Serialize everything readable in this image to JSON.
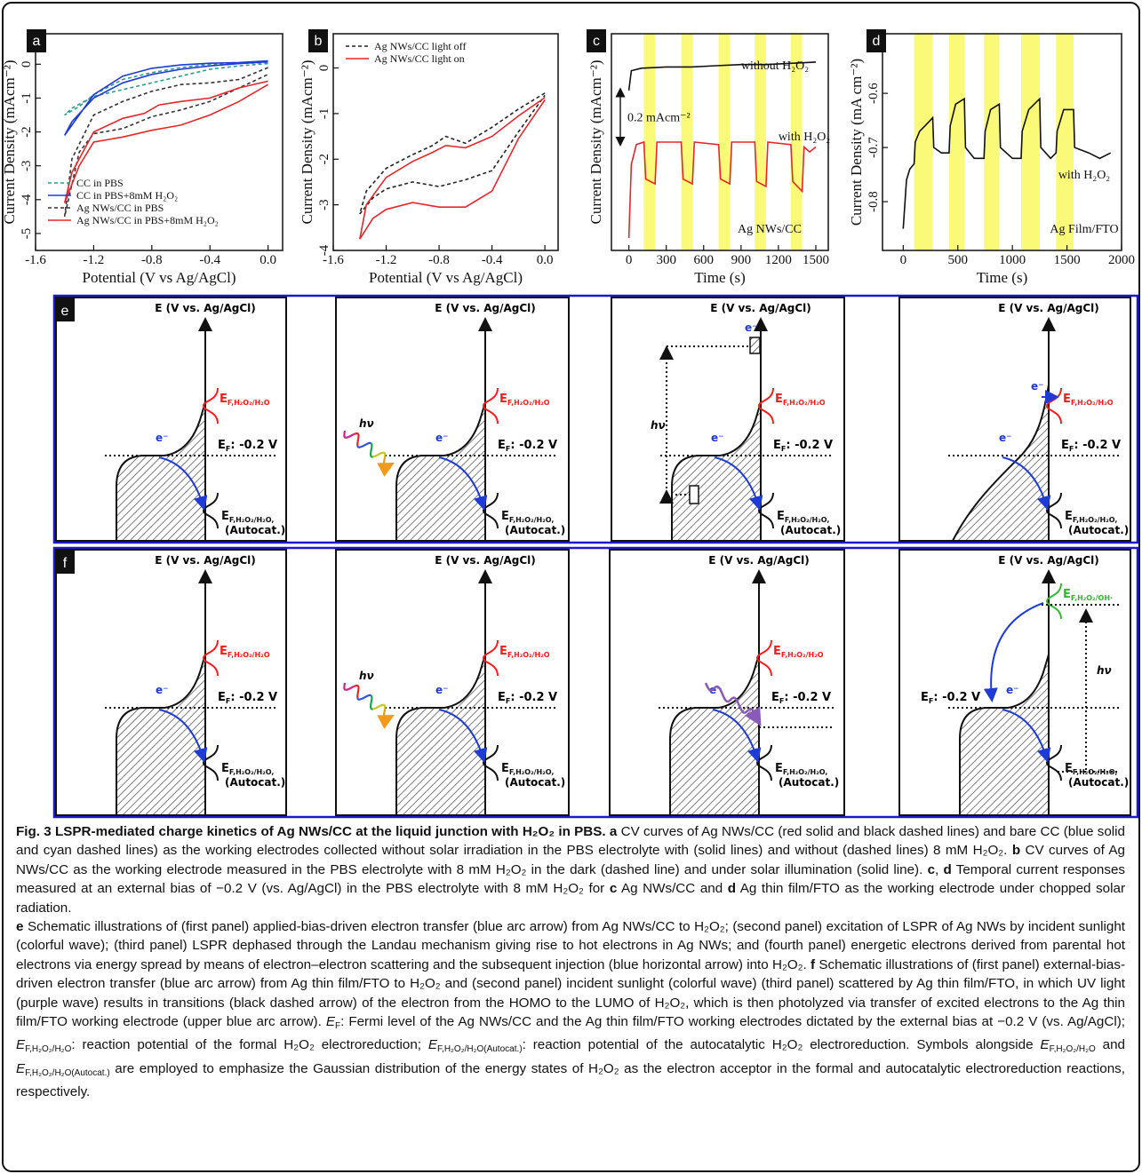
{
  "chart_data": [
    {
      "type": "line",
      "label": "a",
      "xlabel": "Potential (V vs Ag/AgCl)",
      "ylabel": "Current Density (mAcm⁻²)",
      "xlim": [
        -1.6,
        0.1
      ],
      "ylim": [
        -5.5,
        0.9
      ],
      "xticks": [
        -1.6,
        -1.2,
        -0.8,
        -0.4,
        {
          "value": 0,
          "label": "0.0"
        }
      ],
      "yticks": [
        -5,
        -4,
        -3,
        -2,
        -1,
        0
      ],
      "legend": "lower left",
      "series": [
        {
          "name": "CC in PBS",
          "color": "#2e9a8e",
          "dash": true,
          "x": [
            0,
            -0.2,
            -0.4,
            -0.6,
            -0.8,
            -1.0,
            -1.2,
            -1.35,
            -1.4,
            -1.3,
            -1.2,
            -1.0,
            -0.8,
            -0.6,
            -0.4,
            -0.2,
            0
          ],
          "values": [
            0.02,
            -0.05,
            -0.15,
            -0.35,
            -0.55,
            -0.75,
            -0.95,
            -1.3,
            -1.5,
            -1.25,
            -0.9,
            -0.45,
            -0.25,
            -0.1,
            0,
            0.02,
            0.05
          ]
        },
        {
          "name": "CC in PBS+8mM H₂O₂",
          "color": "#1f3bd6",
          "dash": false,
          "x": [
            0,
            -0.2,
            -0.4,
            -0.6,
            -0.8,
            -1.0,
            -1.2,
            -1.35,
            -1.4,
            -1.3,
            -1.2,
            -1.0,
            -0.8,
            -0.6,
            -0.4,
            -0.2,
            0
          ],
          "values": [
            0.07,
            0.02,
            -0.05,
            -0.15,
            -0.3,
            -0.55,
            -1.0,
            -1.7,
            -2.1,
            -1.5,
            -0.9,
            -0.35,
            -0.12,
            -0.02,
            0.03,
            0.05,
            0.1
          ]
        },
        {
          "name": "Ag NWs/CC in PBS",
          "color": "#333333",
          "dash": true,
          "x": [
            0,
            -0.2,
            -0.4,
            -0.6,
            -0.8,
            -1.0,
            -1.2,
            -1.35,
            -1.4,
            -1.3,
            -1.2,
            -1.0,
            -0.8,
            -0.6,
            -0.4,
            -0.2,
            0
          ],
          "values": [
            -0.1,
            -0.45,
            -0.55,
            -0.6,
            -0.8,
            -1.1,
            -1.5,
            -2.8,
            -4.5,
            -2.6,
            -2.05,
            -1.9,
            -1.55,
            -1.35,
            -1.1,
            -0.7,
            -0.3
          ]
        },
        {
          "name": "Ag NWs/CC in PBS+8mM H₂O₂",
          "color": "#e8262a",
          "dash": false,
          "x": [
            0,
            -0.2,
            -0.4,
            -0.6,
            -0.75,
            -0.85,
            -1.0,
            -1.2,
            -1.35,
            -1.4,
            -1.3,
            -1.2,
            -1.0,
            -0.8,
            -0.6,
            -0.4,
            -0.2,
            0
          ],
          "values": [
            -0.5,
            -0.7,
            -1.0,
            -1.1,
            -1.2,
            -1.45,
            -1.6,
            -2.0,
            -3.2,
            -4.1,
            -3.0,
            -2.3,
            -2.15,
            -1.95,
            -1.8,
            -1.5,
            -1.1,
            -0.6
          ]
        }
      ]
    },
    {
      "type": "line",
      "label": "b",
      "xlabel": "Potential (V vs Ag/AgCl)",
      "ylabel": "Current Density (mAcm⁻²)",
      "xlim": [
        -1.6,
        0.1
      ],
      "ylim": [
        -4,
        0.75
      ],
      "xticks": [
        -1.6,
        -1.2,
        -0.8,
        -0.4,
        {
          "value": 0,
          "label": "0.0"
        }
      ],
      "yticks": [
        -4,
        -3,
        -2,
        -1,
        0
      ],
      "legend": "upper left",
      "series": [
        {
          "name": "Ag NWs/CC light off",
          "color": "#222222",
          "dash": true,
          "x": [
            0,
            -0.2,
            -0.4,
            -0.6,
            -0.75,
            -0.85,
            -1.0,
            -1.2,
            -1.35,
            -1.4,
            -1.3,
            -1.2,
            -1.0,
            -0.8,
            -0.6,
            -0.4,
            -0.2,
            0
          ],
          "values": [
            -0.55,
            -0.9,
            -1.3,
            -1.65,
            -1.5,
            -1.7,
            -1.9,
            -2.2,
            -2.7,
            -3.2,
            -2.85,
            -2.65,
            -2.5,
            -2.6,
            -2.45,
            -2.25,
            -1.4,
            -0.6
          ]
        },
        {
          "name": "Ag NWs/CC light on",
          "color": "#e8262a",
          "dash": false,
          "x": [
            0,
            -0.2,
            -0.4,
            -0.6,
            -0.75,
            -0.85,
            -1.0,
            -1.2,
            -1.35,
            -1.4,
            -1.3,
            -1.2,
            -1.0,
            -0.8,
            -0.6,
            -0.4,
            -0.2,
            0
          ],
          "values": [
            -0.65,
            -1.05,
            -1.5,
            -1.75,
            -1.7,
            -1.85,
            -2.05,
            -2.4,
            -3.0,
            -3.75,
            -3.3,
            -3.1,
            -2.95,
            -3.05,
            -3.05,
            -2.7,
            -1.55,
            -0.7
          ]
        }
      ]
    },
    {
      "type": "line",
      "label": "c",
      "xlabel": "Time (s)",
      "ylabel": "Current Density (mAcm⁻²)",
      "xlim": [
        -140,
        1600
      ],
      "ylim": [
        0,
        0.88
      ],
      "xticks": [
        0,
        300,
        600,
        900,
        1200,
        1500
      ],
      "highlight_color": "#fafa78",
      "highlights": [
        [
          120,
          210
        ],
        [
          420,
          510
        ],
        [
          720,
          810
        ],
        [
          1010,
          1100
        ],
        [
          1300,
          1390
        ]
      ],
      "annotations": [
        "without H₂O₂",
        "with H₂O₂",
        "Ag NWs/CC"
      ],
      "scale_bar": {
        "value": 0.2,
        "label": "0.2 mAcm⁻²"
      },
      "series": [
        {
          "color": "#111111",
          "dash": false,
          "x": [
            0,
            20,
            100,
            300,
            500,
            700,
            900,
            1100,
            1300,
            1500
          ],
          "values": [
            0.65,
            0.73,
            0.74,
            0.745,
            0.745,
            0.75,
            0.755,
            0.755,
            0.76,
            0.765
          ]
        },
        {
          "color": "#e8262a",
          "dash": false,
          "x": [
            0,
            20,
            60,
            120,
            135,
            210,
            225,
            420,
            435,
            510,
            525,
            720,
            735,
            810,
            825,
            1010,
            1025,
            1100,
            1115,
            1300,
            1315,
            1390,
            1405,
            1450,
            1500
          ],
          "values": [
            0.05,
            0.35,
            0.43,
            0.44,
            0.29,
            0.27,
            0.44,
            0.44,
            0.29,
            0.27,
            0.44,
            0.43,
            0.29,
            0.27,
            0.44,
            0.44,
            0.28,
            0.26,
            0.44,
            0.43,
            0.28,
            0.24,
            0.42,
            0.4,
            0.42
          ]
        }
      ]
    },
    {
      "type": "line",
      "label": "d",
      "xlabel": "Time (s)",
      "ylabel": "Current Density (mA cm⁻²)",
      "xlim": [
        -190,
        2000
      ],
      "ylim": [
        -0.89,
        -0.49
      ],
      "xticks": [
        0,
        500,
        1000,
        1500,
        2000
      ],
      "yticks": [
        -0.8,
        -0.7,
        -0.6
      ],
      "highlight_color": "#fafa78",
      "highlights": [
        [
          100,
          270
        ],
        [
          420,
          560
        ],
        [
          740,
          880
        ],
        [
          1080,
          1250
        ],
        [
          1400,
          1560
        ]
      ],
      "annotations": [
        "with H₂O₂",
        "Ag Film/FTO"
      ],
      "series": [
        {
          "color": "#111111",
          "dash": false,
          "x": [
            0,
            30,
            60,
            100,
            110,
            150,
            200,
            270,
            280,
            350,
            420,
            430,
            480,
            560,
            570,
            650,
            740,
            750,
            800,
            880,
            890,
            1000,
            1080,
            1090,
            1150,
            1250,
            1260,
            1350,
            1400,
            1410,
            1470,
            1560,
            1570,
            1700,
            1800,
            1900
          ],
          "values": [
            -0.85,
            -0.76,
            -0.74,
            -0.73,
            -0.69,
            -0.67,
            -0.66,
            -0.645,
            -0.7,
            -0.71,
            -0.71,
            -0.66,
            -0.62,
            -0.61,
            -0.7,
            -0.72,
            -0.72,
            -0.67,
            -0.63,
            -0.62,
            -0.7,
            -0.72,
            -0.72,
            -0.67,
            -0.63,
            -0.61,
            -0.7,
            -0.72,
            -0.71,
            -0.67,
            -0.63,
            -0.63,
            -0.7,
            -0.71,
            -0.72,
            -0.71
          ]
        }
      ]
    }
  ],
  "schematics": {
    "e": {
      "label": "e",
      "panels": [
        {
          "axis_label": "E (V vs. Ag/AgCl)",
          "acceptor": {
            "main": "E",
            "sub": "F,H₂O₂/H₂O"
          },
          "acceptor_color": "#ff1a1a",
          "electron": "e⁻",
          "fermi": {
            "main": "E",
            "sub": "F",
            "rest": ": -0.2 V"
          },
          "autocat": {
            "main": "E",
            "sub": "F,H₂O₂/H₂O,",
            "note": "(Autocat.)"
          }
        },
        {
          "axis_label": "E (V vs. Ag/AgCl)",
          "acceptor": {
            "main": "E",
            "sub": "F,H₂O₂/H₂O"
          },
          "acceptor_color": "#ff1a1a",
          "electron": "e⁻",
          "fermi": {
            "main": "E",
            "sub": "F",
            "rest": ": -0.2 V"
          },
          "autocat": {
            "main": "E",
            "sub": "F,H₂O₂/H₂O,",
            "note": "(Autocat.)"
          },
          "hv": "hν"
        },
        {
          "axis_label": "E (V vs. Ag/AgCl)",
          "acceptor": {
            "main": "E",
            "sub": "F,H₂O₂/H₂O"
          },
          "acceptor_color": "#ff1a1a",
          "electron": "e⁻",
          "fermi": {
            "main": "E",
            "sub": "F",
            "rest": ": -0.2 V"
          },
          "autocat": {
            "main": "E",
            "sub": "F,H₂O₂/H₂O,",
            "note": "(Autocat.)"
          },
          "hv": "hν",
          "hot_electron": "e⁻"
        },
        {
          "axis_label": "E (V vs. Ag/AgCl)",
          "acceptor": {
            "main": "E",
            "sub": "F,H₂O₂/H₂O"
          },
          "acceptor_color": "#ff1a1a",
          "electron": "e⁻",
          "fermi": {
            "main": "E",
            "sub": "F",
            "rest": ": -0.2 V"
          },
          "autocat": {
            "main": "E",
            "sub": "F,H₂O₂/H₂O,",
            "note": "(Autocat.)"
          },
          "injected": "e⁻"
        }
      ]
    },
    "f": {
      "label": "f",
      "panels": [
        {
          "axis_label": "E (V vs. Ag/AgCl)",
          "acceptor": {
            "main": "E",
            "sub": "F,H₂O₂/H₂O"
          },
          "acceptor_color": "#ff1a1a",
          "electron": "e⁻",
          "fermi": {
            "main": "E",
            "sub": "F",
            "rest": ": -0.2 V"
          },
          "autocat": {
            "main": "E",
            "sub": "F,H₂O₂/H₂O,",
            "note": "(Autocat.)"
          }
        },
        {
          "axis_label": "E (V vs. Ag/AgCl)",
          "acceptor": {
            "main": "E",
            "sub": "F,H₂O₂/H₂O"
          },
          "acceptor_color": "#ff1a1a",
          "electron": "e⁻",
          "fermi": {
            "main": "E",
            "sub": "F",
            "rest": ": -0.2 V"
          },
          "autocat": {
            "main": "E",
            "sub": "F,H₂O₂/H₂O,",
            "note": "(Autocat.)"
          },
          "hv": "hν"
        },
        {
          "axis_label": "E (V vs. Ag/AgCl)",
          "acceptor": {
            "main": "E",
            "sub": "F,H₂O₂/H₂O"
          },
          "acceptor_color": "#ff1a1a",
          "electron": "e⁻",
          "fermi": {
            "main": "E",
            "sub": "F",
            "rest": ": -0.2 V"
          },
          "autocat": {
            "main": "E",
            "sub": "F,H₂O₂/H₂O,",
            "note": "(Autocat.)"
          }
        },
        {
          "axis_label": "E (V vs. Ag/AgCl)",
          "acceptor": {
            "main": "E",
            "sub": "F,H₂O₂/OH·"
          },
          "acceptor_color": "#2dbb2d",
          "electron": "e⁻",
          "fermi": {
            "main": "E",
            "sub": "F",
            "rest": ": -0.2 V"
          },
          "autocat": {
            "main": "E",
            "sub": "F,H₂O₂/H₂O,",
            "note": "(Autocat.)"
          },
          "hv": "hν"
        }
      ]
    }
  },
  "caption": {
    "paragraphs": [
      [
        {
          "text": "Fig. 3 LSPR-mediated charge kinetics of Ag NWs/CC at the liquid junction with H₂O₂ in PBS. a",
          "style": "b"
        },
        {
          "text": " CV curves of Ag NWs/CC (red solid and black dashed lines) and bare CC (blue solid and cyan dashed lines) as the working electrodes collected without solar irradiation in the PBS electrolyte with (solid lines) and without (dashed lines) 8 mM H₂O₂. "
        },
        {
          "text": "b",
          "style": "b"
        },
        {
          "text": " CV curves of Ag NWs/CC as the working electrode measured in the PBS electrolyte with 8 mM H₂O₂ in the dark (dashed line) and under solar illumination (solid line). "
        },
        {
          "text": "c",
          "style": "b"
        },
        {
          "text": ", "
        },
        {
          "text": "d",
          "style": "b"
        },
        {
          "text": " Temporal current responses measured at an external bias of −0.2 V (vs. Ag/AgCl) in the PBS electrolyte with 8 mM H₂O₂ for "
        },
        {
          "text": "c",
          "style": "b"
        },
        {
          "text": " Ag NWs/CC and "
        },
        {
          "text": "d",
          "style": "b"
        },
        {
          "text": " Ag thin film/FTO as the working electrode under chopped solar radiation."
        }
      ],
      [
        {
          "text": "e",
          "style": "b"
        },
        {
          "text": " Schematic illustrations of (first panel) applied-bias-driven electron transfer (blue arc arrow) from Ag NWs/CC to H₂O₂; (second panel) excitation of LSPR of Ag NWs by incident sunlight (colorful wave); (third panel) LSPR dephased through the Landau mechanism giving rise to hot electrons in Ag NWs; and (fourth panel) energetic electrons derived from parental hot electrons via energy spread by means of electron–electron scattering and the subsequent injection (blue horizontal arrow) into H₂O₂. "
        },
        {
          "text": "f",
          "style": "b"
        },
        {
          "text": " Schematic illustrations of (first panel) external-bias-driven electron transfer (blue arc arrow) from Ag thin film/FTO to H₂O₂ and (second panel) incident sunlight (colorful wave) (third panel) scattered by Ag thin film/FTO, in which UV light (purple wave) results in transitions (black dashed arrow) of the electron from the HOMO to the LUMO of H₂O₂, which is then photolyzed via transfer of excited electrons to the Ag thin film/FTO working electrode (upper blue arc arrow). "
        },
        {
          "text": "E",
          "style": "i"
        },
        {
          "text": "F",
          "style": "sub"
        },
        {
          "text": ": Fermi level of the Ag NWs/CC and the Ag thin film/FTO working electrodes dictated by the external bias at −0.2 V (vs. Ag/AgCl); "
        },
        {
          "text": "E",
          "style": "i"
        },
        {
          "text": "F,H₂O₂/H₂O",
          "style": "sub"
        },
        {
          "text": ": reaction potential of the formal H₂O₂ electroreduction; "
        },
        {
          "text": "E",
          "style": "i"
        },
        {
          "text": "F,H₂O₂/H₂O(Autocat.)",
          "style": "sub"
        },
        {
          "text": ": reaction potential of the autocatalytic H₂O₂ electroreduction. Symbols alongside "
        },
        {
          "text": "E",
          "style": "i"
        },
        {
          "text": "F,H₂O₂/H₂O",
          "style": "sub"
        },
        {
          "text": " and "
        },
        {
          "text": "E",
          "style": "i"
        },
        {
          "text": "F,H₂O₂/H₂O(Autocat.)",
          "style": "sub"
        },
        {
          "text": " are employed to emphasize the Gaussian distribution of the energy states of H₂O₂ as the electron acceptor in the formal and autocatalytic electroreduction reactions, respectively."
        }
      ]
    ]
  }
}
